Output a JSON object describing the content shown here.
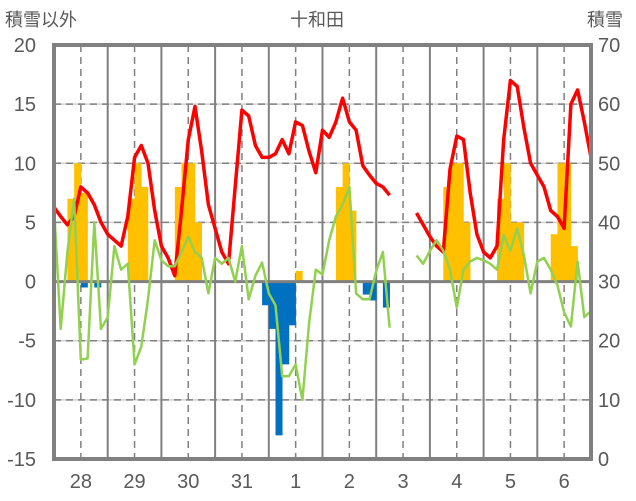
{
  "chart_data": {
    "type": "line",
    "title": "十和田",
    "ylabel_left": "積雪以外",
    "ylabel_right": "積雪",
    "ylim_left": [
      -15,
      20
    ],
    "ylim_right": [
      0,
      70
    ],
    "yticks_left": [
      "20",
      "15",
      "10",
      "5",
      "0",
      "-5",
      "-10",
      "-15"
    ],
    "yticks_right": [
      "70",
      "60",
      "50",
      "40",
      "30",
      "20",
      "10",
      "0"
    ],
    "xticks": [
      "28",
      "29",
      "30",
      "31",
      "1",
      "2",
      "3",
      "4",
      "5",
      "6"
    ],
    "x_unit": "3-hour step index (0 = start of day 28, 80 = end of day 6)",
    "grid": true,
    "colors": {
      "temp": "#ff0000",
      "other": "#92d050",
      "sun": "#ffc000",
      "neg": "#0070c0",
      "snow": "#7030a0",
      "frame": "#808080"
    },
    "series": [
      {
        "name": "red-line",
        "axis": "left",
        "values": [
          6.3,
          5.5,
          4.8,
          5.5,
          8.0,
          7.5,
          6.5,
          5.0,
          4.0,
          3.5,
          3.0,
          5.5,
          10.5,
          11.5,
          10.0,
          6.0,
          3.0,
          2.0,
          0.5,
          6,
          12,
          14.8,
          11,
          6.5,
          4.5,
          2.5,
          1.5,
          8,
          14.5,
          14,
          11.5,
          10.5,
          10.5,
          10.8,
          12,
          10.8,
          13.5,
          13.2,
          11,
          9.2,
          12.8,
          12.2,
          13.5,
          15.5,
          13.5,
          12.8,
          9.8,
          9.0,
          8.3,
          8.0,
          7.3,
          null,
          null,
          null,
          5.8,
          4.8,
          3.8,
          3.0,
          2.5,
          9.5,
          12.3,
          12.0,
          7.5,
          4.0,
          2.5,
          2.0,
          3.0,
          12.0,
          17.0,
          16.5,
          13,
          10,
          9,
          8,
          6,
          5.5,
          4.5,
          15,
          16.2,
          13.5,
          10.5
        ]
      },
      {
        "name": "green-line",
        "axis": "left",
        "values": [
          6.3,
          -4,
          2.5,
          7,
          -6.6,
          -6.5,
          5,
          -4,
          -3,
          3,
          1,
          1.5,
          -7,
          -5.5,
          -1.5,
          3.5,
          1.8,
          1.3,
          1.3,
          2.5,
          3.8,
          2.5,
          2,
          -1,
          2,
          1.5,
          2,
          0,
          3,
          -1.5,
          0.5,
          1.6,
          -1,
          -2,
          -8,
          -8,
          -7,
          -10,
          -3.5,
          1,
          0.6,
          3.5,
          5.5,
          6.5,
          8,
          -1,
          -1.5,
          -1.5,
          0.9,
          2.5,
          -3.9,
          null,
          null,
          null,
          2.2,
          1.5,
          2.6,
          3.5,
          2.6,
          1,
          -2.2,
          1,
          1.7,
          2,
          1.8,
          1.5,
          1,
          3.9,
          2.6,
          4.5,
          2.2,
          -1,
          1.7,
          2,
          1,
          -0.3,
          -2.6,
          -3.8,
          1.7,
          -3,
          -2.5
        ]
      },
      {
        "name": "snow-depth",
        "axis": "right",
        "values": [
          null,
          null,
          null,
          0,
          0,
          0,
          0,
          0,
          0,
          0,
          0,
          0,
          0,
          0,
          0,
          0,
          0,
          0,
          0,
          0,
          0,
          0,
          0,
          0,
          0,
          0,
          0,
          0,
          0,
          0,
          0,
          0,
          0,
          0,
          0,
          0,
          0,
          0,
          0,
          0,
          0,
          0,
          0,
          0,
          0,
          0,
          0,
          0,
          0,
          0,
          null,
          null,
          null,
          null,
          0,
          0,
          0,
          0,
          0,
          0,
          0,
          0,
          0,
          0,
          0,
          0,
          0,
          0,
          0,
          0,
          0,
          0,
          0,
          0,
          0,
          0,
          0,
          0,
          0,
          0,
          0
        ]
      }
    ],
    "bars_positive": [
      [
        2,
        7
      ],
      [
        3,
        10
      ],
      [
        4,
        7.5
      ],
      [
        11,
        7
      ],
      [
        12,
        10
      ],
      [
        13,
        8
      ],
      [
        18,
        8
      ],
      [
        19,
        10
      ],
      [
        20,
        10
      ],
      [
        21,
        5
      ],
      [
        36,
        0.9
      ],
      [
        42,
        8
      ],
      [
        43,
        10
      ],
      [
        44,
        6
      ],
      [
        58,
        8
      ],
      [
        59,
        10
      ],
      [
        60,
        10
      ],
      [
        61,
        5
      ],
      [
        66,
        7
      ],
      [
        67,
        10
      ],
      [
        68,
        5
      ],
      [
        69,
        5
      ],
      [
        74,
        4
      ],
      [
        75,
        10
      ],
      [
        76,
        10
      ],
      [
        77,
        3
      ]
    ],
    "bars_negative": [
      [
        4,
        -0.5
      ],
      [
        6,
        -0.5
      ],
      [
        31,
        -2
      ],
      [
        32,
        -4
      ],
      [
        33,
        -13
      ],
      [
        34,
        -7
      ],
      [
        35,
        -3.7
      ],
      [
        46,
        -1.1
      ],
      [
        47,
        -1.6
      ],
      [
        49,
        -2.2
      ]
    ]
  }
}
